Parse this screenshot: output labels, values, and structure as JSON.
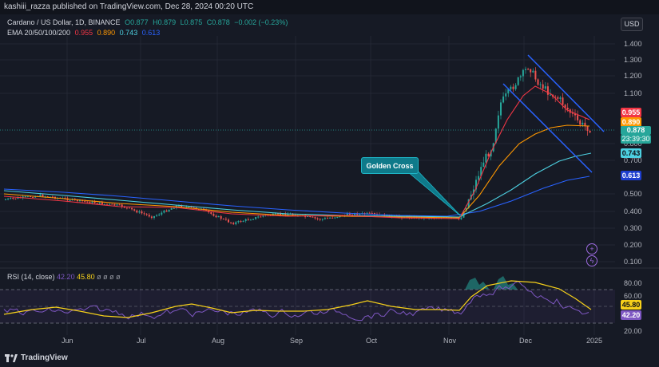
{
  "header": {
    "publish_line": "kashiii_razza published on TradingView.com, Dec 28, 2024 00:20 UTC",
    "currency_button": "USD"
  },
  "legend": {
    "symbol": "Cardano / US Dollar, 1D, BINANCE",
    "open": "O0.877",
    "high": "H0.879",
    "low": "L0.875",
    "close": "C0.878",
    "change": "−0.002 (−0.23%)",
    "ema_label": "EMA 20/50/100/200",
    "ema_values": [
      "0.955",
      "0.890",
      "0.743",
      "0.613"
    ]
  },
  "price_axis": {
    "ticks": [
      "1.400",
      "1.300",
      "1.200",
      "1.100",
      "0.800",
      "0.700",
      "0.500",
      "0.400",
      "0.300",
      "0.200",
      "0.100"
    ],
    "tags": {
      "ema20": "0.955",
      "ema50": "0.890",
      "last_price": "0.878",
      "countdown": "23:39:30",
      "ema100": "0.743",
      "ema200": "0.613"
    }
  },
  "rsi": {
    "label": "RSI (14, close)",
    "value1": "42.20",
    "value2": "45.80",
    "placeholders": "ø ø ø ø",
    "ticks": [
      "80.00",
      "60.00",
      "20.00"
    ],
    "tags": {
      "ma": "45.80",
      "rsi": "42.20"
    }
  },
  "time_axis": [
    "Jun",
    "Jul",
    "Aug",
    "Sep",
    "Oct",
    "Nov",
    "Dec",
    "2025"
  ],
  "annotation": {
    "label": "Golden Cross"
  },
  "brand": {
    "name": "TradingView"
  },
  "colors": {
    "ema20": "#f23645",
    "ema50": "#ff9800",
    "ema100": "#4dd0e1",
    "ema200": "#2962ff",
    "up": "#26a69a",
    "down": "#ef5350",
    "rsi": "#7e57c2",
    "rsi_ma": "#f7d11a",
    "channel": "#2962ff"
  }
}
